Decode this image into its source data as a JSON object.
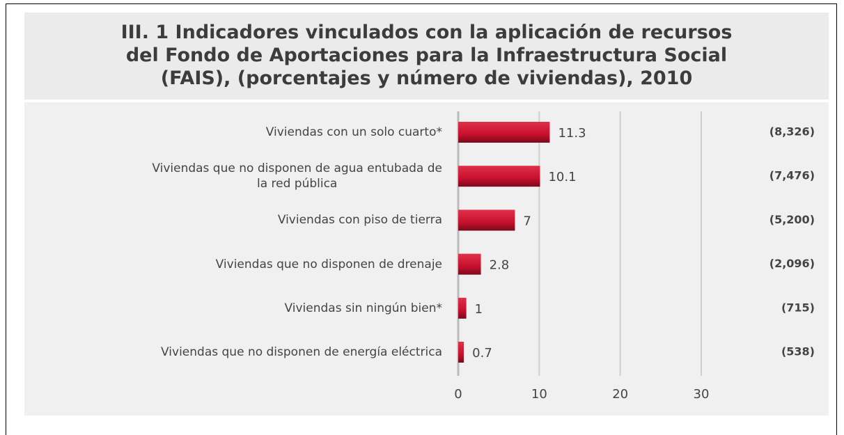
{
  "chart_data": {
    "type": "barh",
    "title": "III. 1 Indicadores vinculados con la aplicación de recursos\ndel Fondo de Aportaciones para la Infraestructura Social\n(FAIS), (porcentajes y número de viviendas), 2010",
    "categories": [
      "Viviendas con un solo cuarto*",
      "Viviendas que no disponen de agua entubada de\nla red pública",
      "Viviendas con piso de tierra",
      "Viviendas que no disponen de drenaje",
      "Viviendas sin ningún bien*",
      "Viviendas que no disponen de energía eléctrica"
    ],
    "values": [
      11.3,
      10.1,
      7,
      2.8,
      1,
      0.7
    ],
    "counts": [
      "(8,326)",
      "(7,476)",
      "(5,200)",
      "(2,096)",
      "(715)",
      "(538)"
    ],
    "color": "#c8102e",
    "xlim": [
      0,
      30
    ],
    "xticks": [
      0,
      10,
      20,
      30
    ],
    "grid": true
  }
}
